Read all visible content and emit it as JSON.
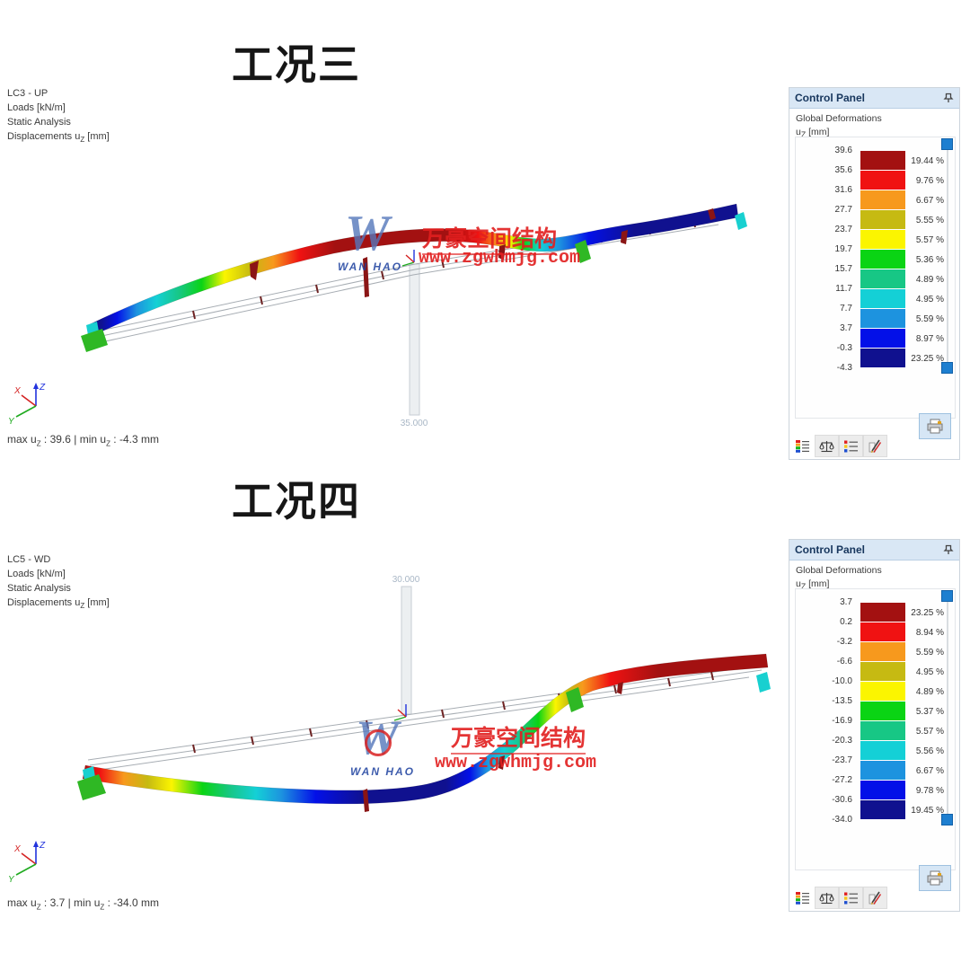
{
  "legend_colors": [
    "#a31111",
    "#f01212",
    "#f7991d",
    "#c6ba12",
    "#fbf500",
    "#0ad414",
    "#17c785",
    "#14d0d6",
    "#1d93df",
    "#0310e8",
    "#10118f"
  ],
  "axis": {
    "x": "X",
    "y": "Y",
    "z": "Z"
  },
  "watermark": {
    "logo": "W",
    "logo_sub": "WAN HAO",
    "cn": "万豪空间结构",
    "url": "www.zgwhmjg.com"
  },
  "sections": [
    {
      "title": "工况三",
      "info1": "LC3 - UP",
      "info2": "Loads [kN/m]",
      "info3": "Static Analysis",
      "info4_pre": "Displacements u",
      "info4_sub": "Z",
      "info4_post": " [mm]",
      "dimension_label": "35.000",
      "mm1": "max u",
      "mm_sub": "Z",
      "mm2": " : 39.6 | min u",
      "mm3": " : -4.3 mm",
      "panel": {
        "title": "Control Panel",
        "sub1": "Global Deformations",
        "sub2_pre": "u",
        "sub2_sub": "Z",
        "sub2_post": " [mm]",
        "values": [
          "39.6",
          "35.6",
          "31.6",
          "27.7",
          "23.7",
          "19.7",
          "15.7",
          "11.7",
          "7.7",
          "3.7",
          "-0.3",
          "-4.3"
        ],
        "percents": [
          "19.44 %",
          "9.76 %",
          "6.67 %",
          "5.55 %",
          "5.57 %",
          "5.36 %",
          "4.89 %",
          "4.95 %",
          "5.59 %",
          "8.97 %",
          "23.25 %"
        ]
      },
      "beam_stops": [
        [
          0,
          10
        ],
        [
          0.02,
          10
        ],
        [
          0.045,
          9
        ],
        [
          0.075,
          8
        ],
        [
          0.105,
          7
        ],
        [
          0.14,
          6
        ],
        [
          0.175,
          5
        ],
        [
          0.21,
          4
        ],
        [
          0.25,
          3
        ],
        [
          0.285,
          2
        ],
        [
          0.325,
          1
        ],
        [
          0.38,
          0
        ],
        [
          0.56,
          0
        ],
        [
          0.6,
          1
        ],
        [
          0.63,
          2
        ],
        [
          0.65,
          4
        ],
        [
          0.67,
          5
        ],
        [
          0.695,
          7
        ],
        [
          0.725,
          8
        ],
        [
          0.77,
          9
        ],
        [
          0.84,
          10
        ],
        [
          1,
          10
        ]
      ]
    },
    {
      "title": "工况四",
      "info1": "LC5 - WD",
      "info2": "Loads [kN/m]",
      "info3": "Static Analysis",
      "info4_pre": "Displacements u",
      "info4_sub": "Z",
      "info4_post": " [mm]",
      "dimension_label": "30.000",
      "mm1": "max u",
      "mm_sub": "Z",
      "mm2": " : 3.7 | min u",
      "mm3": " : -34.0 mm",
      "panel": {
        "title": "Control Panel",
        "sub1": "Global Deformations",
        "sub2_pre": "u",
        "sub2_sub": "Z",
        "sub2_post": " [mm]",
        "values": [
          "3.7",
          "0.2",
          "-3.2",
          "-6.6",
          "-10.0",
          "-13.5",
          "-16.9",
          "-20.3",
          "-23.7",
          "-27.2",
          "-30.6",
          "-34.0"
        ],
        "percents": [
          "23.25 %",
          "8.94 %",
          "5.59 %",
          "4.95 %",
          "4.89 %",
          "5.37 %",
          "5.57 %",
          "5.56 %",
          "6.67 %",
          "9.78 %",
          "19.45 %"
        ]
      },
      "beam_stops": [
        [
          0,
          0
        ],
        [
          0.025,
          1
        ],
        [
          0.06,
          2
        ],
        [
          0.095,
          3
        ],
        [
          0.13,
          4
        ],
        [
          0.175,
          5
        ],
        [
          0.215,
          6
        ],
        [
          0.253,
          7
        ],
        [
          0.29,
          8
        ],
        [
          0.34,
          9
        ],
        [
          0.41,
          10
        ],
        [
          0.53,
          10
        ],
        [
          0.565,
          9
        ],
        [
          0.59,
          8
        ],
        [
          0.615,
          7
        ],
        [
          0.64,
          6
        ],
        [
          0.665,
          5
        ],
        [
          0.69,
          4
        ],
        [
          0.71,
          3
        ],
        [
          0.73,
          2
        ],
        [
          0.77,
          1
        ],
        [
          0.84,
          0
        ],
        [
          1,
          0
        ]
      ]
    }
  ]
}
